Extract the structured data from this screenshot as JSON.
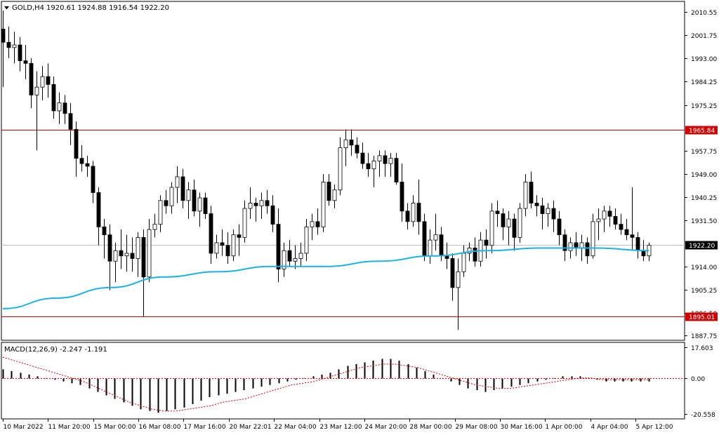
{
  "header": {
    "symbol_label": "GOLD,H4",
    "ohlc": "1920.61 1924.88 1916.54 1922.20"
  },
  "macd": {
    "label": "MACD(12,26,9) -2.247 -1.191"
  },
  "colors": {
    "background": "#ffffff",
    "frame": "#000000",
    "bull_body": "#ffffff",
    "bear_body": "#000000",
    "moving_average": "#1ab2e8",
    "level_line": "#cc0000",
    "level_tag": "#cc0000",
    "current_tag": "#000000",
    "signal_line": "#cc0000"
  },
  "chart_data": [
    {
      "type": "candlestick",
      "symbol": "GOLD",
      "timeframe": "H4",
      "ylim": [
        1886.0,
        2014.5
      ],
      "yticks": [
        "2010.55",
        "2001.75",
        "1993.00",
        "1984.25",
        "1975.25",
        "1957.75",
        "1949.00",
        "1940.25",
        "1931.50",
        "1914.00",
        "1905.25",
        "1896.50",
        "1887.75"
      ],
      "levels": [
        {
          "value": 1965.84,
          "label": "1965.84"
        },
        {
          "value": 1895.01,
          "label": "1895.01"
        }
      ],
      "current_price": {
        "value": 1922.2,
        "label": "1922.20"
      },
      "x_labels": [
        "10 Mar 2022",
        "11 Mar 20:00",
        "15 Mar 00:00",
        "16 Mar 08:00",
        "17 Mar 16:00",
        "20 Mar 22:01",
        "22 Mar 04:00",
        "23 Mar 12:00",
        "24 Mar 20:00",
        "28 Mar 00:00",
        "29 Mar 08:00",
        "30 Mar 16:00",
        "1 Apr 00:00",
        "4 Apr 04:00",
        "5 Apr 12:00"
      ],
      "candles": [
        [
          2004,
          2011,
          1982,
          1999
        ],
        [
          1999,
          2005,
          1993,
          1997
        ],
        [
          1997,
          2003,
          1991,
          1998
        ],
        [
          1998,
          2001,
          1988,
          1992
        ],
        [
          1992,
          1998,
          1985,
          1991
        ],
        [
          1991,
          1993,
          1974,
          1979
        ],
        [
          1979,
          1988,
          1958,
          1982
        ],
        [
          1982,
          1990,
          1977,
          1986
        ],
        [
          1986,
          1991,
          1978,
          1983
        ],
        [
          1983,
          1986,
          1970,
          1973
        ],
        [
          1973,
          1980,
          1968,
          1976
        ],
        [
          1976,
          1979,
          1968,
          1972
        ],
        [
          1972,
          1976,
          1960,
          1966
        ],
        [
          1966,
          1969,
          1948,
          1955
        ],
        [
          1955,
          1960,
          1950,
          1953
        ],
        [
          1953,
          1956,
          1948,
          1952
        ],
        [
          1952,
          1954,
          1938,
          1942
        ],
        [
          1942,
          1944,
          1922,
          1929
        ],
        [
          1929,
          1932,
          1917,
          1926
        ],
        [
          1926,
          1930,
          1905,
          1916
        ],
        [
          1916,
          1923,
          1908,
          1920
        ],
        [
          1920,
          1928,
          1913,
          1918
        ],
        [
          1918,
          1926,
          1912,
          1919
        ],
        [
          1919,
          1925,
          1912,
          1917
        ],
        [
          1917,
          1927,
          1910,
          1925
        ],
        [
          1925,
          1928,
          1895,
          1910
        ],
        [
          1910,
          1932,
          1908,
          1928
        ],
        [
          1928,
          1934,
          1925,
          1930
        ],
        [
          1930,
          1941,
          1927,
          1939
        ],
        [
          1939,
          1943,
          1934,
          1937
        ],
        [
          1937,
          1946,
          1934,
          1944
        ],
        [
          1944,
          1952,
          1938,
          1948
        ],
        [
          1948,
          1951,
          1936,
          1939
        ],
        [
          1939,
          1946,
          1932,
          1943
        ],
        [
          1943,
          1947,
          1933,
          1935
        ],
        [
          1935,
          1942,
          1929,
          1940
        ],
        [
          1940,
          1942,
          1932,
          1934
        ],
        [
          1934,
          1937,
          1915,
          1919
        ],
        [
          1919,
          1926,
          1917,
          1923
        ],
        [
          1923,
          1928,
          1918,
          1922
        ],
        [
          1922,
          1927,
          1915,
          1918
        ],
        [
          1918,
          1928,
          1916,
          1926
        ],
        [
          1926,
          1930,
          1918,
          1925
        ],
        [
          1925,
          1939,
          1923,
          1936
        ],
        [
          1936,
          1944,
          1932,
          1938
        ],
        [
          1938,
          1940,
          1931,
          1937
        ],
        [
          1937,
          1942,
          1932,
          1939
        ],
        [
          1939,
          1943,
          1934,
          1937
        ],
        [
          1937,
          1941,
          1927,
          1930
        ],
        [
          1930,
          1936,
          1908,
          1913
        ],
        [
          1913,
          1923,
          1910,
          1920
        ],
        [
          1920,
          1924,
          1914,
          1916
        ],
        [
          1916,
          1922,
          1913,
          1917
        ],
        [
          1917,
          1923,
          1914,
          1919
        ],
        [
          1919,
          1932,
          1916,
          1929
        ],
        [
          1929,
          1934,
          1924,
          1931
        ],
        [
          1931,
          1936,
          1926,
          1929
        ],
        [
          1929,
          1949,
          1927,
          1946
        ],
        [
          1946,
          1949,
          1937,
          1939
        ],
        [
          1939,
          1945,
          1936,
          1943
        ],
        [
          1943,
          1963,
          1941,
          1959
        ],
        [
          1959,
          1966,
          1952,
          1962
        ],
        [
          1962,
          1966,
          1956,
          1960
        ],
        [
          1960,
          1963,
          1955,
          1957
        ],
        [
          1957,
          1961,
          1951,
          1953
        ],
        [
          1953,
          1957,
          1948,
          1951
        ],
        [
          1951,
          1956,
          1944,
          1954
        ],
        [
          1954,
          1958,
          1948,
          1956
        ],
        [
          1956,
          1958,
          1948,
          1953
        ],
        [
          1953,
          1957,
          1948,
          1955
        ],
        [
          1955,
          1957,
          1945,
          1946
        ],
        [
          1946,
          1953,
          1931,
          1935
        ],
        [
          1935,
          1938,
          1928,
          1931
        ],
        [
          1931,
          1941,
          1929,
          1938
        ],
        [
          1938,
          1947,
          1926,
          1931
        ],
        [
          1931,
          1934,
          1916,
          1918
        ],
        [
          1918,
          1928,
          1915,
          1924
        ],
        [
          1924,
          1934,
          1920,
          1926
        ],
        [
          1926,
          1929,
          1916,
          1918
        ],
        [
          1918,
          1923,
          1913,
          1917
        ],
        [
          1917,
          1919,
          1901,
          1906
        ],
        [
          1906,
          1917,
          1890,
          1912
        ],
        [
          1912,
          1922,
          1910,
          1919
        ],
        [
          1919,
          1923,
          1916,
          1921
        ],
        [
          1921,
          1925,
          1914,
          1916
        ],
        [
          1916,
          1927,
          1914,
          1924
        ],
        [
          1924,
          1928,
          1917,
          1922
        ],
        [
          1922,
          1938,
          1919,
          1935
        ],
        [
          1935,
          1939,
          1929,
          1934
        ],
        [
          1934,
          1936,
          1924,
          1929
        ],
        [
          1929,
          1935,
          1922,
          1932
        ],
        [
          1932,
          1934,
          1920,
          1925
        ],
        [
          1925,
          1938,
          1923,
          1936
        ],
        [
          1936,
          1949,
          1933,
          1946
        ],
        [
          1946,
          1950,
          1936,
          1938
        ],
        [
          1938,
          1941,
          1933,
          1937
        ],
        [
          1937,
          1940,
          1928,
          1934
        ],
        [
          1934,
          1938,
          1929,
          1936
        ],
        [
          1936,
          1939,
          1927,
          1932
        ],
        [
          1932,
          1935,
          1922,
          1926
        ],
        [
          1926,
          1928,
          1916,
          1920
        ],
        [
          1920,
          1925,
          1917,
          1923
        ],
        [
          1923,
          1927,
          1918,
          1921
        ],
        [
          1921,
          1926,
          1916,
          1923
        ],
        [
          1923,
          1925,
          1915,
          1918
        ],
        [
          1918,
          1934,
          1917,
          1931
        ],
        [
          1931,
          1936,
          1924,
          1932
        ],
        [
          1932,
          1937,
          1927,
          1935
        ],
        [
          1935,
          1937,
          1929,
          1933
        ],
        [
          1933,
          1936,
          1928,
          1930
        ],
        [
          1930,
          1934,
          1926,
          1928
        ],
        [
          1928,
          1932,
          1924,
          1926
        ],
        [
          1926,
          1944,
          1920,
          1925
        ],
        [
          1925,
          1927,
          1917,
          1920
        ],
        [
          1920,
          1924,
          1916,
          1918
        ],
        [
          1918,
          1923,
          1916,
          1922
        ]
      ],
      "ma": [
        1898,
        1902,
        1906,
        1910,
        1912,
        1914,
        1914,
        1916,
        1918,
        1920,
        1921,
        1921,
        1920
      ],
      "ma_label": ""
    },
    {
      "type": "histogram",
      "name": "MACD(12,26,9)",
      "ylim": [
        -23.5,
        20.5
      ],
      "yticks": [
        "17.603",
        "0.00",
        "-20.558"
      ],
      "histogram": [
        5,
        4,
        3,
        2,
        1,
        0,
        -1,
        -2,
        -3,
        -4,
        -6,
        -8,
        -10,
        -12,
        -14,
        -16,
        -18,
        -19,
        -20,
        -19,
        -18,
        -17,
        -15,
        -13,
        -11,
        -10,
        -9,
        -8,
        -7,
        -6,
        -5,
        -4,
        -3,
        -2,
        -1,
        0,
        1,
        2,
        3,
        5,
        7,
        8,
        9,
        10,
        11,
        11,
        10,
        8,
        6,
        4,
        2,
        0,
        -2,
        -4,
        -6,
        -7,
        -8,
        -7,
        -6,
        -5,
        -4,
        -3,
        -2,
        -1,
        0,
        1,
        1,
        1,
        0,
        -1,
        -2,
        -2,
        -2,
        -2,
        -2,
        -2
      ],
      "signal": [
        12,
        10,
        8,
        6,
        4,
        2,
        0,
        -2,
        -5,
        -8,
        -11,
        -14,
        -16,
        -18,
        -19,
        -19,
        -18,
        -17,
        -16,
        -14,
        -13,
        -12,
        -10,
        -8,
        -6,
        -4,
        -3,
        -2,
        0,
        2,
        4,
        6,
        7,
        8,
        8,
        7,
        6,
        4,
        2,
        0,
        -2,
        -4,
        -5,
        -6,
        -6,
        -5,
        -4,
        -3,
        -2,
        -1,
        0,
        0,
        -1,
        -1,
        -1,
        -1,
        -1
      ]
    }
  ]
}
